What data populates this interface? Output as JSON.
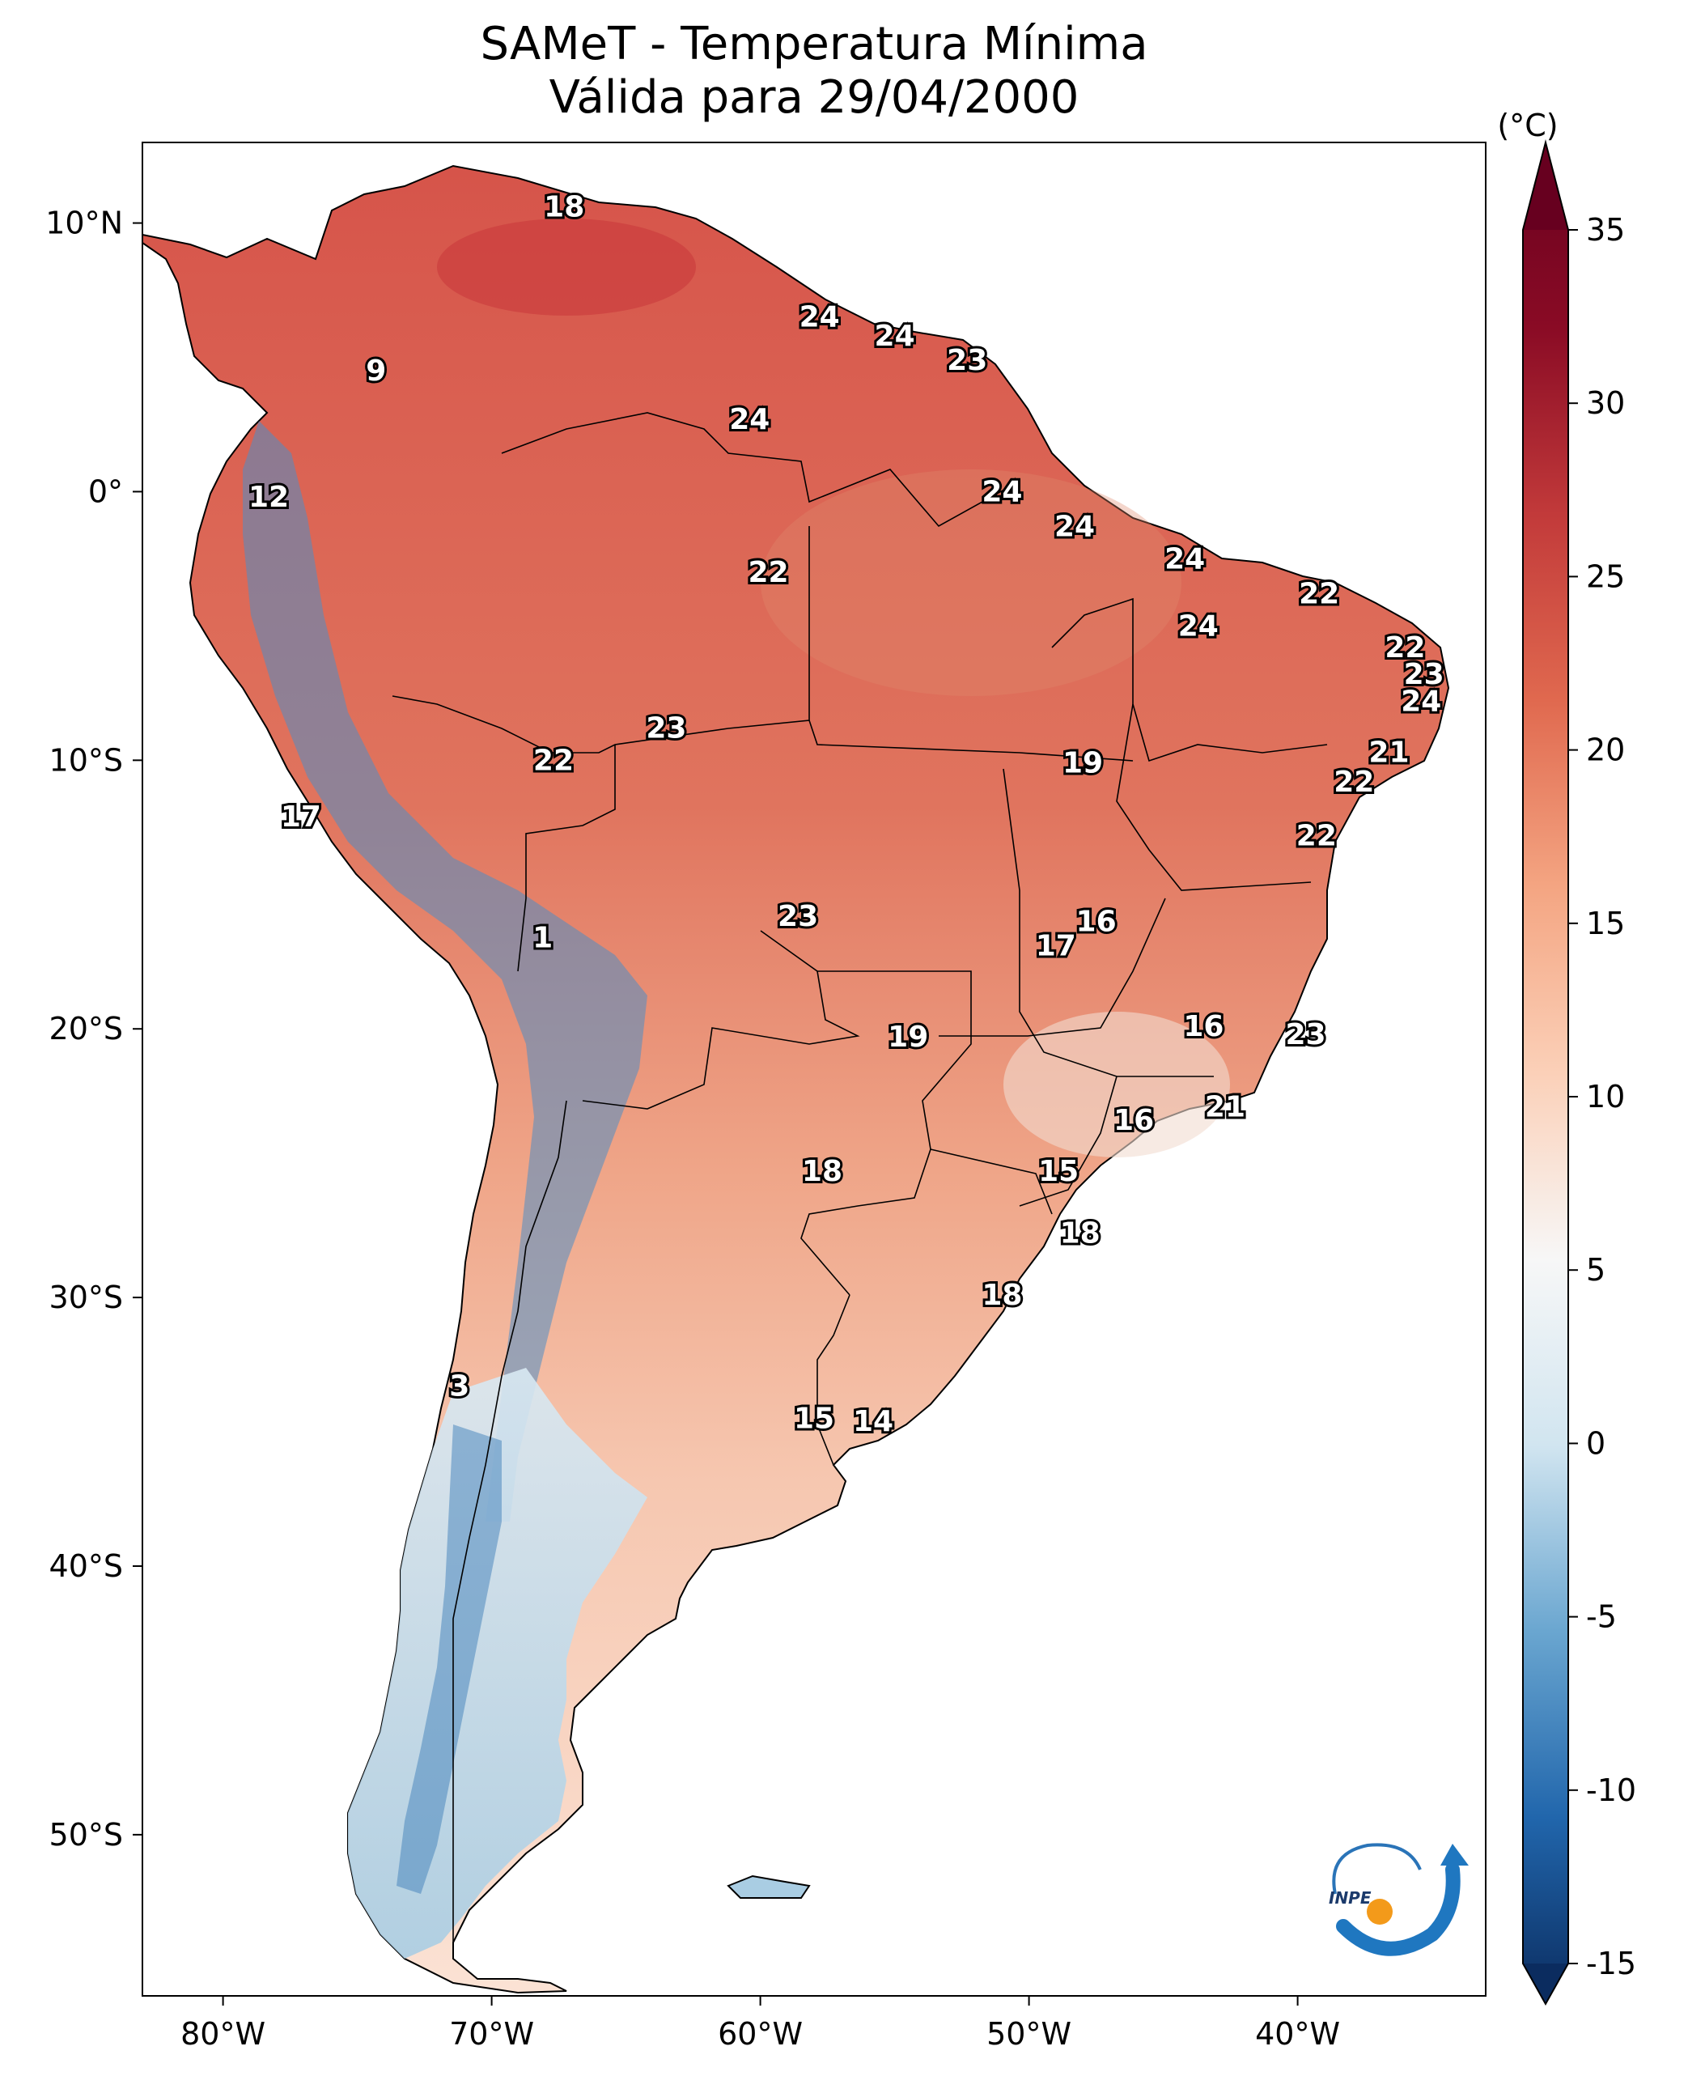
{
  "title": {
    "line1": "SAMeT - Temperatura Mínima",
    "line2": "Válida para 29/04/2000"
  },
  "colorbar": {
    "unit": "(°C)",
    "ticks": [
      "35",
      "30",
      "25",
      "20",
      "15",
      "10",
      "5",
      "0",
      "-5",
      "-10",
      "-15"
    ],
    "range": [
      -15,
      35
    ],
    "colors": [
      "#0b2c5f",
      "#2166ac",
      "#6aa6d0",
      "#d1e5f0",
      "#f7f7f7",
      "#fbd0b8",
      "#f4a582",
      "#e0694f",
      "#c23a3a",
      "#8a0b25",
      "#67001f"
    ]
  },
  "axes": {
    "lon_ticks": [
      "80°W",
      "70°W",
      "60°W",
      "50°W",
      "40°W"
    ],
    "lat_ticks": [
      "10°N",
      "0°",
      "10°S",
      "20°S",
      "30°S",
      "40°S",
      "50°S"
    ]
  },
  "map": {
    "region": "South America",
    "lon_range": [
      -83,
      -33
    ],
    "lat_range": [
      -56,
      13
    ],
    "labels": [
      {
        "lon": -67.3,
        "lat": 10.6,
        "value": "18"
      },
      {
        "lon": -74.3,
        "lat": 4.5,
        "value": "9"
      },
      {
        "lon": -57.8,
        "lat": 6.5,
        "value": "24"
      },
      {
        "lon": -55.0,
        "lat": 5.8,
        "value": "24"
      },
      {
        "lon": -52.3,
        "lat": 4.9,
        "value": "23"
      },
      {
        "lon": -60.4,
        "lat": 2.7,
        "value": "24"
      },
      {
        "lon": -51.0,
        "lat": 0.0,
        "value": "24"
      },
      {
        "lon": -78.3,
        "lat": -0.2,
        "value": "12"
      },
      {
        "lon": -48.3,
        "lat": -1.3,
        "value": "24"
      },
      {
        "lon": -44.2,
        "lat": -2.5,
        "value": "24"
      },
      {
        "lon": -59.7,
        "lat": -3.0,
        "value": "22"
      },
      {
        "lon": -39.2,
        "lat": -3.8,
        "value": "22"
      },
      {
        "lon": -43.7,
        "lat": -5.0,
        "value": "24"
      },
      {
        "lon": -36.0,
        "lat": -5.8,
        "value": "22"
      },
      {
        "lon": -35.3,
        "lat": -6.8,
        "value": "23"
      },
      {
        "lon": -35.4,
        "lat": -7.8,
        "value": "24"
      },
      {
        "lon": -63.5,
        "lat": -8.8,
        "value": "23"
      },
      {
        "lon": -36.6,
        "lat": -9.7,
        "value": "21"
      },
      {
        "lon": -67.7,
        "lat": -10.0,
        "value": "22"
      },
      {
        "lon": -48.0,
        "lat": -10.1,
        "value": "19"
      },
      {
        "lon": -37.9,
        "lat": -10.8,
        "value": "22"
      },
      {
        "lon": -77.1,
        "lat": -12.1,
        "value": "17"
      },
      {
        "lon": -39.3,
        "lat": -12.8,
        "value": "22"
      },
      {
        "lon": -58.6,
        "lat": -15.8,
        "value": "23"
      },
      {
        "lon": -47.5,
        "lat": -16.0,
        "value": "16"
      },
      {
        "lon": -49.0,
        "lat": -16.9,
        "value": "17"
      },
      {
        "lon": -68.1,
        "lat": -16.6,
        "value": "1"
      },
      {
        "lon": -54.5,
        "lat": -20.3,
        "value": "19"
      },
      {
        "lon": -43.5,
        "lat": -19.9,
        "value": "16"
      },
      {
        "lon": -39.7,
        "lat": -20.2,
        "value": "23"
      },
      {
        "lon": -42.7,
        "lat": -22.9,
        "value": "21"
      },
      {
        "lon": -46.1,
        "lat": -23.4,
        "value": "16"
      },
      {
        "lon": -57.7,
        "lat": -25.3,
        "value": "18"
      },
      {
        "lon": -48.9,
        "lat": -25.3,
        "value": "15"
      },
      {
        "lon": -48.1,
        "lat": -27.6,
        "value": "18"
      },
      {
        "lon": -51.0,
        "lat": -29.9,
        "value": "18"
      },
      {
        "lon": -71.2,
        "lat": -33.3,
        "value": "3"
      },
      {
        "lon": -58.0,
        "lat": -34.5,
        "value": "15"
      },
      {
        "lon": -55.8,
        "lat": -34.6,
        "value": "14"
      }
    ]
  },
  "logo": {
    "text": "INPE"
  }
}
